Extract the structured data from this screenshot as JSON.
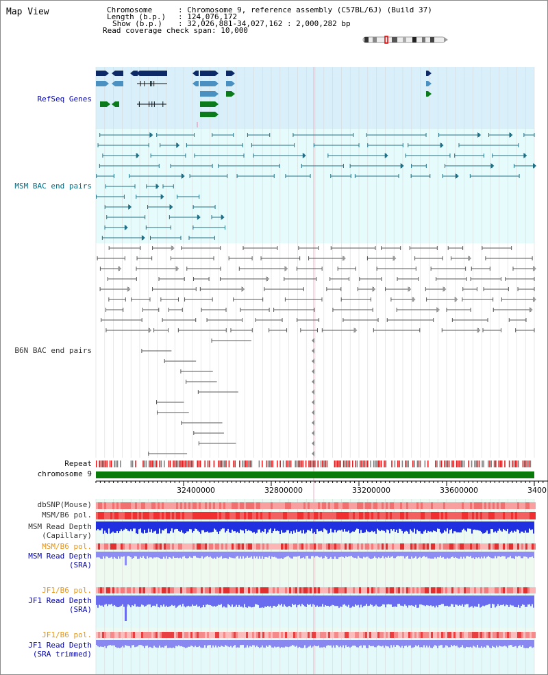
{
  "title": "Map View",
  "info": {
    "chromosome_key": "Chromosome",
    "chromosome_value": ": Chromosome 9, reference assembly (C57BL/6J) (Build 37)",
    "length_key": "Length (b.p.)",
    "length_value": ": 124,076,172",
    "show_key": "Show (b.p.)",
    "show_value": ": 32,026,881-34,027,162 : 2,000,282 bp",
    "coverage_key": "Read coverage check span",
    "coverage_value": ": 10,000"
  },
  "tracks": {
    "refseq": "RefSeq Genes",
    "msm_bac": "MSM BAC end pairs",
    "b6n_bac": "B6N BAC end pairs",
    "repeat": "Repeat",
    "chromosome": "chromosome 9",
    "dbsnp": "dbSNP(Mouse)",
    "msm_b6_pol_1": "MSM/B6 pol.",
    "msm_read_depth_cap_1": "MSM Read Depth",
    "msm_read_depth_cap_2": "(Capillary)",
    "msm_b6_pol_2": "MSM/B6 pol.",
    "msm_read_depth_sra_1": "MSM Read Depth",
    "msm_read_depth_sra_2": "(SRA)",
    "jf1_b6_pol_1": "JF1/B6 pol.",
    "jf1_read_depth_sra_1": "JF1 Read Depth",
    "jf1_read_depth_sra_2": "(SRA)",
    "jf1_b6_pol_2": "JF1/B6 pol.",
    "jf1_read_depth_trim_1": "JF1 Read Depth",
    "jf1_read_depth_trim_2": "(SRA trimmed)"
  },
  "axis": {
    "ticks": [
      "32400000",
      "32800000",
      "33200000",
      "33600000",
      "3400"
    ]
  },
  "colors": {
    "refseq_bg": "#d9f0fb",
    "msm_bg": "#e6fbfb",
    "navy_gene": "#0d2a66",
    "blue_gene": "#4a90c0",
    "green_gene": "#0b7a1a",
    "teal_line": "#1f6f86",
    "gray_line": "#555555",
    "snp_red": "#f04848",
    "depth_blue": "#2030e0",
    "depth_light": "#7a7cf0",
    "chromosome_green": "#0a7a0a"
  }
}
